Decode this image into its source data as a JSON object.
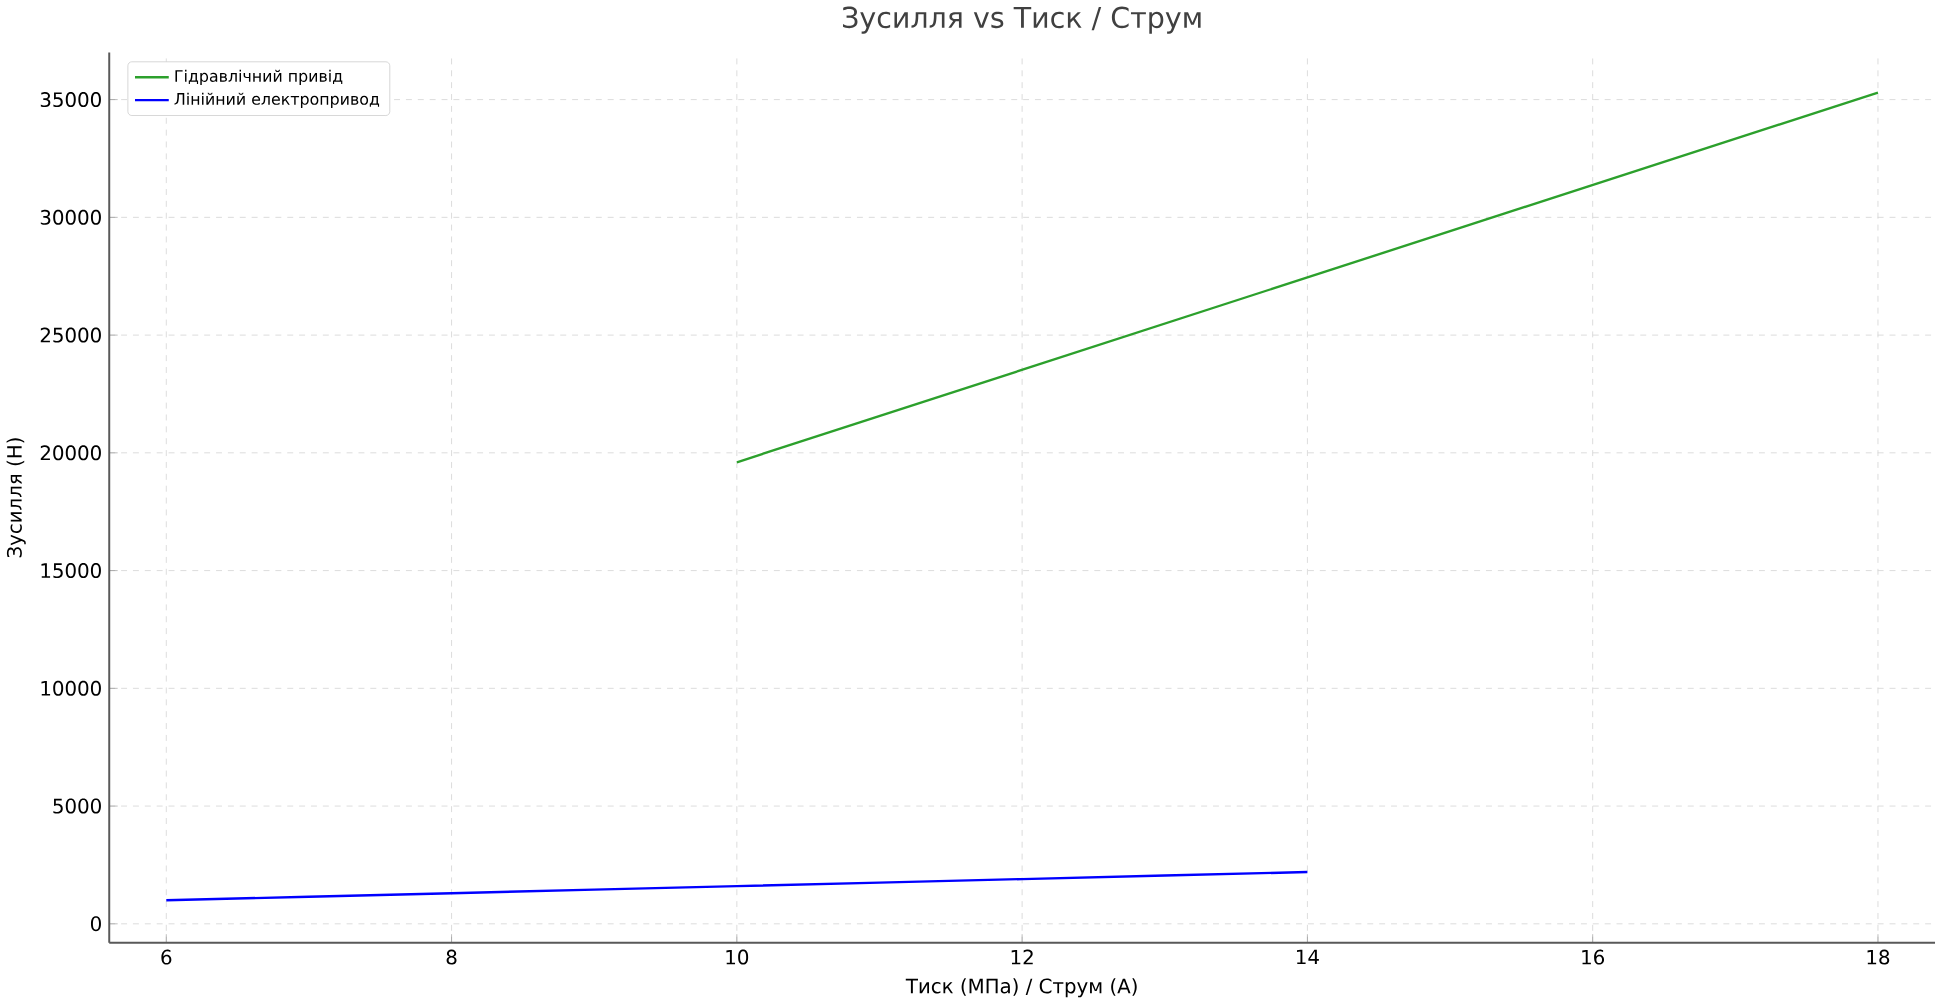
{
  "chart_data": {
    "type": "line",
    "title": "Зусилля vs Тиск / Струм",
    "xlabel": "Тиск (МПа) / Струм (А)",
    "ylabel": "Зусилля (Н)",
    "series": [
      {
        "name": "Гідравлічний привід",
        "color": "#2ca02c",
        "x": [
          10,
          18
        ],
        "values": [
          19600,
          35300
        ]
      },
      {
        "name": "Лінійний електропривод",
        "color": "#0000ff",
        "x": [
          6,
          7,
          8,
          9,
          10,
          11,
          12,
          13,
          14
        ],
        "values": [
          1000,
          1150,
          1300,
          1450,
          1600,
          1750,
          1900,
          2050,
          2200
        ]
      }
    ],
    "xlim": [
      5.6,
      18.4
    ],
    "ylim": [
      -800,
      37000
    ],
    "xticks": [
      6,
      8,
      10,
      12,
      14,
      16,
      18
    ],
    "yticks": [
      0,
      5000,
      10000,
      15000,
      20000,
      25000,
      30000,
      35000
    ],
    "grid": true,
    "legend": "top left",
    "line_style": "solid"
  }
}
